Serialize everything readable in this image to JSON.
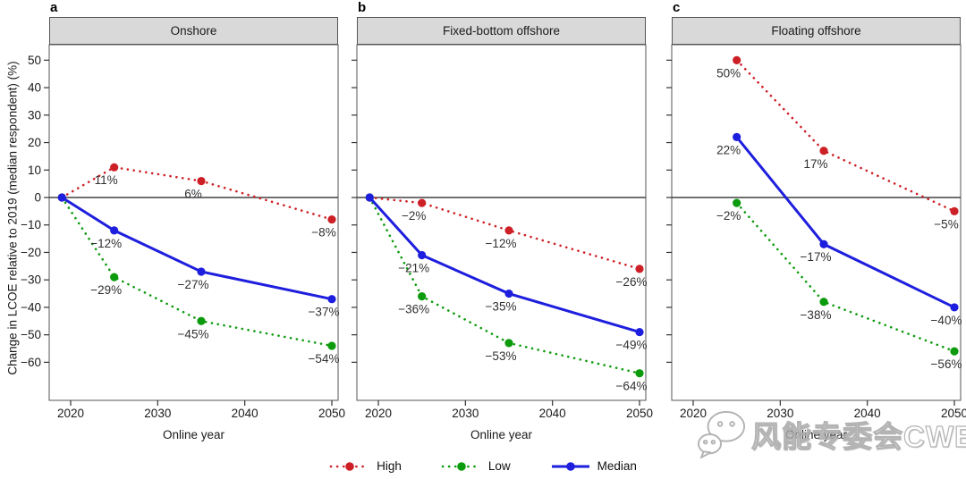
{
  "figure": {
    "ylabel": "Change in LCOE relative to 2019 (median respondent) (%)",
    "xlabel": "Online year",
    "watermark": {
      "icon": "wechat-icon",
      "text": "风能专委会CWEA"
    }
  },
  "chart_data": {
    "type": "line",
    "ylabel": "Change in LCOE relative to 2019 (median respondent) (%)",
    "xlabel": "Online year",
    "x_ticks": [
      2020,
      2030,
      2040,
      2050
    ],
    "y_ticks": [
      50,
      40,
      30,
      20,
      10,
      0,
      -10,
      -20,
      -30,
      -40,
      -50,
      -60
    ],
    "xlim": [
      2017.5,
      2050.7
    ],
    "ylim": [
      -73.9,
      55.6
    ],
    "grid": false,
    "zero_line": 0,
    "legend": {
      "position": "bottom",
      "items": [
        {
          "name": "High",
          "style": "dotted",
          "color": "#cd2026"
        },
        {
          "name": "Low",
          "style": "dotted",
          "color": "#0c9b0c"
        },
        {
          "name": "Median",
          "style": "solid",
          "color": "#1e1ede"
        }
      ]
    },
    "panels": [
      {
        "letter": "a",
        "title": "Onshore",
        "x": [
          2019,
          2025,
          2035,
          2050
        ],
        "series": [
          {
            "name": "High",
            "style": "dotted",
            "color": "#cd2026",
            "values": [
              0,
              11,
              6,
              -8
            ],
            "labels": [
              "",
              "11%",
              "6%",
              "−8%"
            ]
          },
          {
            "name": "Low",
            "style": "dotted",
            "color": "#0c9b0c",
            "values": [
              0,
              -29,
              -45,
              -54
            ],
            "labels": [
              "",
              "−29%",
              "−45%",
              "−54%"
            ]
          },
          {
            "name": "Median",
            "style": "solid",
            "color": "#1e1ede",
            "values": [
              0,
              -12,
              -27,
              -37
            ],
            "labels": [
              "",
              "−12%",
              "−27%",
              "−37%"
            ]
          }
        ]
      },
      {
        "letter": "b",
        "title": "Fixed-bottom offshore",
        "x": [
          2019,
          2025,
          2035,
          2050
        ],
        "series": [
          {
            "name": "High",
            "style": "dotted",
            "color": "#cd2026",
            "values": [
              0,
              -2,
              -12,
              -26
            ],
            "labels": [
              "",
              "−2%",
              "−12%",
              "−26%"
            ]
          },
          {
            "name": "Low",
            "style": "dotted",
            "color": "#0c9b0c",
            "values": [
              0,
              -36,
              -53,
              -64
            ],
            "labels": [
              "",
              "−36%",
              "−53%",
              "−64%"
            ]
          },
          {
            "name": "Median",
            "style": "solid",
            "color": "#1e1ede",
            "values": [
              0,
              -21,
              -35,
              -49
            ],
            "labels": [
              "",
              "−21%",
              "−35%",
              "−49%"
            ]
          }
        ]
      },
      {
        "letter": "c",
        "title": "Floating offshore",
        "x": [
          2025,
          2035,
          2050
        ],
        "series": [
          {
            "name": "High",
            "style": "dotted",
            "color": "#cd2026",
            "values": [
              50,
              17,
              -5
            ],
            "labels": [
              "50%",
              "17%",
              "−5%"
            ]
          },
          {
            "name": "Low",
            "style": "dotted",
            "color": "#0c9b0c",
            "values": [
              -2,
              -38,
              -56
            ],
            "labels": [
              "−2%",
              "−38%",
              "−56%"
            ]
          },
          {
            "name": "Median",
            "style": "solid",
            "color": "#1e1ede",
            "values": [
              22,
              -17,
              -40
            ],
            "labels": [
              "22%",
              "−17%",
              "−40%"
            ]
          }
        ]
      }
    ]
  }
}
